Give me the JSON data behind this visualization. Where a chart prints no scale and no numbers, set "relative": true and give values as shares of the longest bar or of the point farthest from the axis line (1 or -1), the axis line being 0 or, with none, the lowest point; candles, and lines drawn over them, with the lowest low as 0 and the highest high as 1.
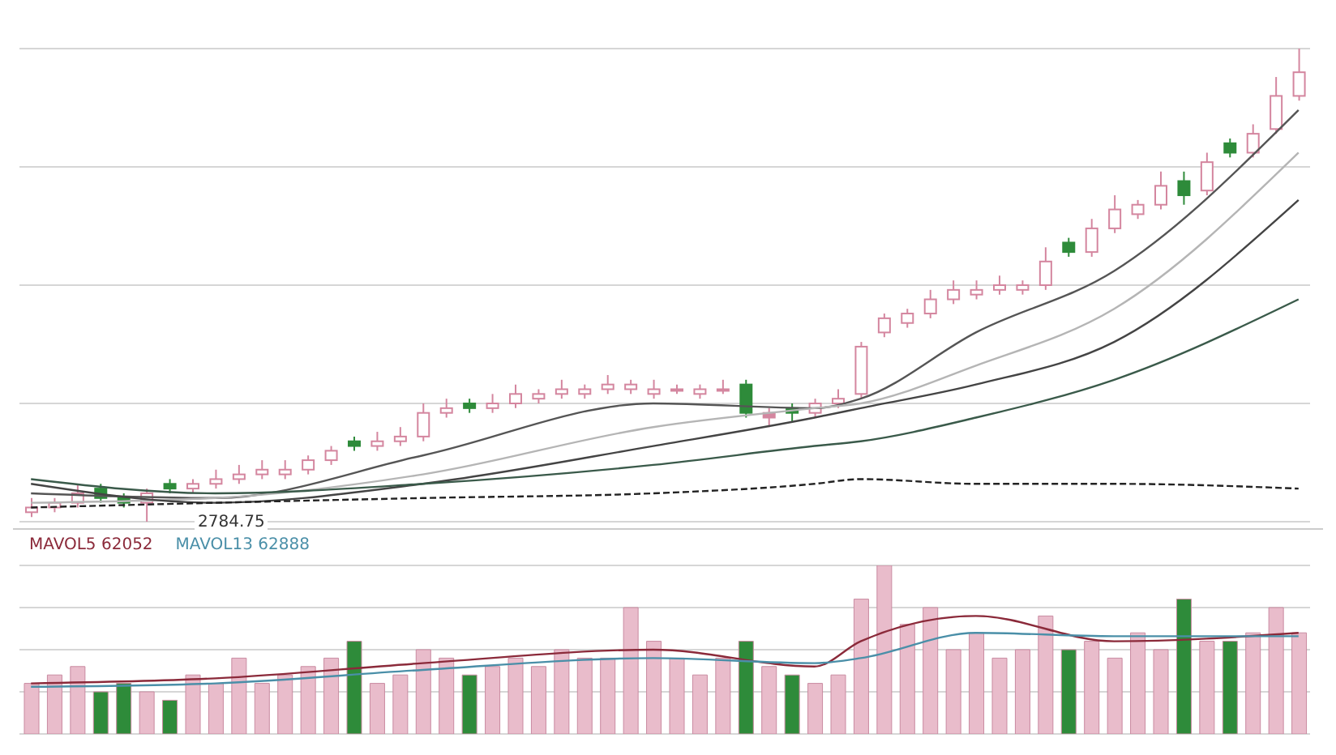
{
  "chart_data": [
    {
      "type": "candlestick",
      "relative": true,
      "grid": true,
      "annotations": [
        "2784.75"
      ],
      "categories": [
        null,
        null,
        null,
        null,
        null,
        null,
        null,
        null,
        null,
        null,
        null,
        null,
        null,
        null,
        null,
        null,
        null,
        null,
        null,
        null,
        null,
        null,
        null,
        null,
        null,
        null,
        null,
        null,
        null,
        null,
        null,
        null,
        null,
        null,
        null,
        null,
        null,
        null,
        null,
        null,
        null,
        null,
        null,
        null,
        null,
        null,
        null,
        null,
        null,
        null,
        null,
        null,
        null,
        null,
        null,
        null
      ],
      "ohlc": [
        [
          0.02,
          0.05,
          0.01,
          0.03
        ],
        [
          0.03,
          0.05,
          0.02,
          0.04
        ],
        [
          0.04,
          0.08,
          0.03,
          0.06
        ],
        [
          0.07,
          0.08,
          0.04,
          0.05
        ],
        [
          0.05,
          0.06,
          0.03,
          0.04
        ],
        [
          0.04,
          0.07,
          0,
          0.06
        ],
        [
          0.08,
          0.09,
          0.06,
          0.07
        ],
        [
          0.07,
          0.09,
          0.06,
          0.08
        ],
        [
          0.08,
          0.11,
          0.07,
          0.09
        ],
        [
          0.09,
          0.12,
          0.08,
          0.1
        ],
        [
          0.1,
          0.13,
          0.09,
          0.11
        ],
        [
          0.1,
          0.13,
          0.09,
          0.11
        ],
        [
          0.11,
          0.14,
          0.1,
          0.13
        ],
        [
          0.13,
          0.16,
          0.12,
          0.15
        ],
        [
          0.17,
          0.18,
          0.15,
          0.16
        ],
        [
          0.16,
          0.19,
          0.15,
          0.17
        ],
        [
          0.17,
          0.2,
          0.16,
          0.18
        ],
        [
          0.18,
          0.25,
          0.17,
          0.23
        ],
        [
          0.23,
          0.26,
          0.22,
          0.24
        ],
        [
          0.25,
          0.26,
          0.23,
          0.24
        ],
        [
          0.24,
          0.27,
          0.23,
          0.25
        ],
        [
          0.25,
          0.29,
          0.24,
          0.27
        ],
        [
          0.26,
          0.28,
          0.25,
          0.27
        ],
        [
          0.27,
          0.3,
          0.26,
          0.28
        ],
        [
          0.27,
          0.29,
          0.26,
          0.28
        ],
        [
          0.28,
          0.31,
          0.27,
          0.29
        ],
        [
          0.28,
          0.3,
          0.27,
          0.29
        ],
        [
          0.27,
          0.3,
          0.26,
          0.28
        ],
        [
          0.28,
          0.29,
          0.27,
          0.28
        ],
        [
          0.27,
          0.29,
          0.26,
          0.28
        ],
        [
          0.28,
          0.3,
          0.27,
          0.28
        ],
        [
          0.29,
          0.3,
          0.22,
          0.23
        ],
        [
          0.23,
          0.24,
          0.2,
          0.22
        ],
        [
          0.24,
          0.25,
          0.21,
          0.23
        ],
        [
          0.23,
          0.26,
          0.22,
          0.25
        ],
        [
          0.25,
          0.28,
          0.24,
          0.26
        ],
        [
          0.27,
          0.38,
          0.26,
          0.37
        ],
        [
          0.4,
          0.44,
          0.39,
          0.43
        ],
        [
          0.42,
          0.45,
          0.41,
          0.44
        ],
        [
          0.44,
          0.49,
          0.43,
          0.47
        ],
        [
          0.47,
          0.51,
          0.46,
          0.49
        ],
        [
          0.48,
          0.51,
          0.47,
          0.49
        ],
        [
          0.49,
          0.52,
          0.48,
          0.5
        ],
        [
          0.49,
          0.51,
          0.48,
          0.5
        ],
        [
          0.5,
          0.58,
          0.49,
          0.55
        ],
        [
          0.59,
          0.6,
          0.56,
          0.57
        ],
        [
          0.57,
          0.64,
          0.56,
          0.62
        ],
        [
          0.62,
          0.69,
          0.61,
          0.66
        ],
        [
          0.65,
          0.68,
          0.64,
          0.67
        ],
        [
          0.67,
          0.74,
          0.66,
          0.71
        ],
        [
          0.72,
          0.74,
          0.67,
          0.69
        ],
        [
          0.7,
          0.78,
          0.69,
          0.76
        ],
        [
          0.8,
          0.81,
          0.77,
          0.78
        ],
        [
          0.78,
          0.84,
          0.77,
          0.82
        ],
        [
          0.83,
          0.94,
          0.82,
          0.9
        ],
        [
          0.9,
          1,
          0.89,
          0.95
        ]
      ],
      "colors": [
        "#d4869f",
        "#d4869f",
        "#d4869f",
        "#2e8b3a",
        "#2e8b3a",
        "#d4869f",
        "#2e8b3a",
        "#d4869f",
        "#d4869f",
        "#d4869f",
        "#d4869f",
        "#d4869f",
        "#d4869f",
        "#d4869f",
        "#2e8b3a",
        "#d4869f",
        "#d4869f",
        "#d4869f",
        "#d4869f",
        "#2e8b3a",
        "#d4869f",
        "#d4869f",
        "#d4869f",
        "#d4869f",
        "#d4869f",
        "#d4869f",
        "#d4869f",
        "#d4869f",
        "#d4869f",
        "#d4869f",
        "#d4869f",
        "#2e8b3a",
        "#d4869f",
        "#2e8b3a",
        "#d4869f",
        "#d4869f",
        "#d4869f",
        "#d4869f",
        "#d4869f",
        "#d4869f",
        "#d4869f",
        "#d4869f",
        "#d4869f",
        "#d4869f",
        "#d4869f",
        "#2e8b3a",
        "#d4869f",
        "#d4869f",
        "#d4869f",
        "#d4869f",
        "#2e8b3a",
        "#d4869f",
        "#2e8b3a",
        "#d4869f",
        "#d4869f",
        "#d4869f"
      ],
      "series": [
        {
          "type": "line",
          "color": "#555555",
          "values": [
            0.06,
            null,
            null,
            null,
            null,
            null,
            null,
            null,
            0.05,
            null,
            null,
            null,
            null,
            null,
            null,
            null,
            null,
            0.14,
            null,
            null,
            null,
            null,
            null,
            null,
            null,
            null,
            null,
            0.25,
            null,
            null,
            null,
            null,
            null,
            null,
            0.24,
            null,
            0.26,
            null,
            null,
            null,
            null,
            0.4,
            null,
            null,
            null,
            null,
            null,
            0.53,
            null,
            null,
            null,
            null,
            null,
            null,
            null,
            0.87
          ]
        },
        {
          "type": "line",
          "color": "#b5b5b5",
          "values": [
            0.04,
            null,
            null,
            null,
            null,
            null,
            null,
            null,
            0.05,
            null,
            null,
            null,
            null,
            null,
            null,
            null,
            null,
            0.1,
            null,
            null,
            null,
            null,
            null,
            null,
            null,
            null,
            null,
            0.2,
            null,
            null,
            null,
            null,
            null,
            null,
            0.24,
            null,
            0.25,
            null,
            null,
            null,
            null,
            0.33,
            null,
            null,
            null,
            null,
            null,
            0.45,
            null,
            null,
            null,
            null,
            null,
            null,
            null,
            0.78
          ]
        },
        {
          "type": "line",
          "color": "#444444",
          "values": [
            0.08,
            null,
            null,
            null,
            null,
            null,
            null,
            null,
            0.04,
            null,
            null,
            null,
            null,
            null,
            null,
            null,
            null,
            0.08,
            null,
            null,
            null,
            null,
            null,
            null,
            null,
            null,
            null,
            0.16,
            null,
            null,
            null,
            null,
            null,
            null,
            0.22,
            null,
            0.24,
            null,
            null,
            null,
            null,
            0.29,
            null,
            null,
            null,
            null,
            null,
            0.38,
            null,
            null,
            null,
            null,
            null,
            null,
            null,
            0.68
          ]
        },
        {
          "type": "line",
          "color": "#3a5a4a",
          "values": [
            0.09,
            null,
            null,
            null,
            null,
            null,
            null,
            null,
            0.06,
            null,
            null,
            null,
            null,
            null,
            null,
            null,
            null,
            0.08,
            null,
            null,
            null,
            null,
            null,
            null,
            null,
            null,
            null,
            0.12,
            null,
            null,
            null,
            null,
            null,
            null,
            0.16,
            null,
            0.17,
            null,
            null,
            null,
            null,
            0.22,
            null,
            null,
            null,
            null,
            null,
            0.3,
            null,
            null,
            null,
            null,
            null,
            null,
            null,
            0.47
          ]
        },
        {
          "type": "line",
          "color": "#222222",
          "line_style": "dashed",
          "values": [
            0.03,
            null,
            null,
            null,
            null,
            null,
            null,
            null,
            0.04,
            null,
            null,
            null,
            null,
            null,
            null,
            null,
            null,
            0.05,
            null,
            null,
            null,
            null,
            null,
            null,
            null,
            null,
            null,
            0.06,
            null,
            null,
            null,
            null,
            null,
            null,
            0.08,
            null,
            0.09,
            null,
            null,
            null,
            null,
            0.08,
            null,
            null,
            null,
            null,
            null,
            0.08,
            null,
            null,
            null,
            null,
            null,
            null,
            null,
            0.07
          ]
        }
      ]
    },
    {
      "type": "bar",
      "relative": true,
      "grid": true,
      "legend": "top left",
      "categories": [
        null,
        null,
        null,
        null,
        null,
        null,
        null,
        null,
        null,
        null,
        null,
        null,
        null,
        null,
        null,
        null,
        null,
        null,
        null,
        null,
        null,
        null,
        null,
        null,
        null,
        null,
        null,
        null,
        null,
        null,
        null,
        null,
        null,
        null,
        null,
        null,
        null,
        null,
        null,
        null,
        null,
        null,
        null,
        null,
        null,
        null,
        null,
        null,
        null,
        null,
        null,
        null,
        null,
        null,
        null,
        null
      ],
      "values": [
        0.3,
        0.35,
        0.4,
        0.25,
        0.3,
        0.25,
        0.2,
        0.35,
        0.3,
        0.45,
        0.3,
        0.35,
        0.4,
        0.45,
        0.55,
        0.3,
        0.35,
        0.5,
        0.45,
        0.35,
        0.4,
        0.45,
        0.4,
        0.5,
        0.45,
        0.45,
        0.75,
        0.55,
        0.45,
        0.35,
        0.45,
        0.55,
        0.4,
        0.35,
        0.3,
        0.35,
        0.8,
        1,
        0.65,
        0.75,
        0.5,
        0.6,
        0.45,
        0.5,
        0.7,
        0.5,
        0.55,
        0.45,
        0.6,
        0.5,
        0.8,
        0.55,
        0.55,
        0.6,
        0.75,
        0.6
      ],
      "colors": [
        "#e9bccb",
        "#e9bccb",
        "#e9bccb",
        "#2e8b3a",
        "#2e8b3a",
        "#e9bccb",
        "#2e8b3a",
        "#e9bccb",
        "#e9bccb",
        "#e9bccb",
        "#e9bccb",
        "#e9bccb",
        "#e9bccb",
        "#e9bccb",
        "#2e8b3a",
        "#e9bccb",
        "#e9bccb",
        "#e9bccb",
        "#e9bccb",
        "#2e8b3a",
        "#e9bccb",
        "#e9bccb",
        "#e9bccb",
        "#e9bccb",
        "#e9bccb",
        "#e9bccb",
        "#e9bccb",
        "#e9bccb",
        "#e9bccb",
        "#e9bccb",
        "#e9bccb",
        "#2e8b3a",
        "#e9bccb",
        "#2e8b3a",
        "#e9bccb",
        "#e9bccb",
        "#e9bccb",
        "#e9bccb",
        "#e9bccb",
        "#e9bccb",
        "#e9bccb",
        "#e9bccb",
        "#e9bccb",
        "#e9bccb",
        "#e9bccb",
        "#2e8b3a",
        "#e9bccb",
        "#e9bccb",
        "#e9bccb",
        "#e9bccb",
        "#2e8b3a",
        "#e9bccb",
        "#2e8b3a",
        "#e9bccb",
        "#e9bccb",
        "#e9bccb"
      ],
      "series": [
        {
          "type": "line",
          "name": "MAVOL5 62052",
          "color": "#8b2a3a",
          "values": [
            0.3,
            null,
            null,
            null,
            null,
            null,
            null,
            null,
            0.33,
            null,
            null,
            null,
            null,
            null,
            null,
            null,
            null,
            0.42,
            null,
            null,
            null,
            null,
            null,
            null,
            null,
            null,
            null,
            0.5,
            null,
            null,
            null,
            null,
            null,
            null,
            0.4,
            null,
            0.55,
            null,
            null,
            null,
            null,
            0.7,
            null,
            null,
            null,
            null,
            null,
            0.55,
            null,
            null,
            null,
            null,
            null,
            null,
            null,
            0.6
          ]
        },
        {
          "type": "line",
          "name": "MAVOL13 62888",
          "color": "#4a8fa8",
          "values": [
            0.28,
            null,
            null,
            null,
            null,
            null,
            null,
            null,
            0.3,
            null,
            null,
            null,
            null,
            null,
            null,
            null,
            null,
            0.38,
            null,
            null,
            null,
            null,
            null,
            null,
            null,
            null,
            null,
            0.45,
            null,
            null,
            null,
            null,
            null,
            null,
            0.42,
            null,
            0.45,
            null,
            null,
            null,
            null,
            0.6,
            null,
            null,
            null,
            null,
            null,
            0.58,
            null,
            null,
            null,
            null,
            null,
            null,
            null,
            0.58
          ]
        }
      ]
    }
  ]
}
